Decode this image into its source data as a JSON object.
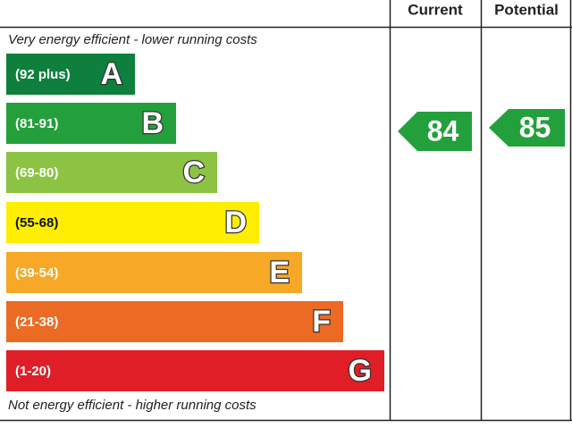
{
  "header": {
    "current": "Current",
    "potential": "Potential"
  },
  "top_note": "Very energy efficient - lower running costs",
  "bottom_note": "Not energy efficient - higher running costs",
  "bands": [
    {
      "range": "(92 plus)",
      "letter": "A",
      "color": "#0f7f3d"
    },
    {
      "range": "(81-91)",
      "letter": "B",
      "color": "#23a03b"
    },
    {
      "range": "(69-80)",
      "letter": "C",
      "color": "#8dc343"
    },
    {
      "range": "(55-68)",
      "letter": "D",
      "color": "#ffee00"
    },
    {
      "range": "(39-54)",
      "letter": "E",
      "color": "#f7a826"
    },
    {
      "range": "(21-38)",
      "letter": "F",
      "color": "#ec6b24"
    },
    {
      "range": "(1-20)",
      "letter": "G",
      "color": "#e01e27"
    }
  ],
  "current": {
    "value": "84",
    "color": "#23a03b"
  },
  "potential": {
    "value": "85",
    "color": "#23a03b"
  }
}
